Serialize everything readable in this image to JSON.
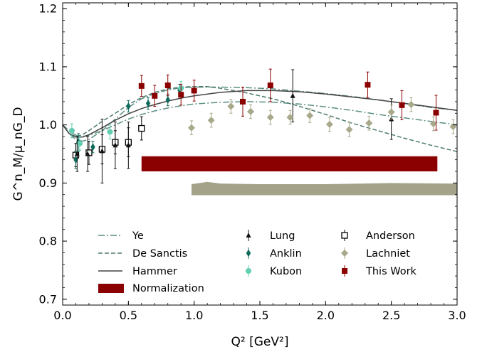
{
  "chart_data": {
    "type": "scatter",
    "xlabel": "Q² [GeV²]",
    "ylabel": "G^n_M/μ_nG_D",
    "xlim": [
      0.0,
      3.0
    ],
    "ylim": [
      0.69,
      1.21
    ],
    "xticks": [
      "0.0",
      "0.5",
      "1.0",
      "1.5",
      "2.0",
      "2.5",
      "3.0"
    ],
    "yticks": [
      "0.7",
      "0.8",
      "0.9",
      "1.0",
      "1.1",
      "1.2"
    ],
    "colors": {
      "ye": "#5b8f82",
      "desanctis": "#4d7a70",
      "hammer": "#444444",
      "lung": "#111111",
      "anklin": "#0f6b5c",
      "kubon": "#63cdb2",
      "anderson": "#000000",
      "lachniet": "#a8a88a",
      "thiswork": "#8b0000",
      "normalization": "#8b0000",
      "lachniet_band": "#a4a38a"
    },
    "legend": [
      {
        "key": "ye",
        "label": "Ye",
        "kind": "dashdot"
      },
      {
        "key": "desanctis",
        "label": "De Sanctis",
        "kind": "dashed"
      },
      {
        "key": "hammer",
        "label": "Hammer",
        "kind": "solid"
      },
      {
        "key": "normalization",
        "label": "Normalization",
        "kind": "band"
      },
      {
        "key": "lung",
        "label": "Lung",
        "kind": "triangle"
      },
      {
        "key": "anklin",
        "label": "Anklin",
        "kind": "thin-diamond"
      },
      {
        "key": "kubon",
        "label": "Kubon",
        "kind": "circle"
      },
      {
        "key": "anderson",
        "label": "Anderson",
        "kind": "open-square"
      },
      {
        "key": "lachniet",
        "label": "Lachniet",
        "kind": "diamond"
      },
      {
        "key": "thiswork",
        "label": "This Work",
        "kind": "square"
      }
    ],
    "curves": [
      {
        "key": "ye",
        "style": "dashdot",
        "points": [
          [
            0.0,
            1.0
          ],
          [
            0.05,
            0.99
          ],
          [
            0.1,
            0.982
          ],
          [
            0.15,
            0.98
          ],
          [
            0.2,
            0.982
          ],
          [
            0.3,
            0.99
          ],
          [
            0.4,
            1.0
          ],
          [
            0.5,
            1.01
          ],
          [
            0.6,
            1.018
          ],
          [
            0.7,
            1.024
          ],
          [
            0.8,
            1.029
          ],
          [
            0.9,
            1.033
          ],
          [
            1.0,
            1.036
          ],
          [
            1.2,
            1.039
          ],
          [
            1.4,
            1.04
          ],
          [
            1.6,
            1.039
          ],
          [
            1.8,
            1.036
          ],
          [
            2.0,
            1.031
          ],
          [
            2.2,
            1.025
          ],
          [
            2.4,
            1.018
          ],
          [
            2.6,
            1.012
          ],
          [
            2.8,
            1.006
          ],
          [
            3.0,
            1.0
          ]
        ]
      },
      {
        "key": "ye",
        "style": "dashdot",
        "points": [
          [
            0.0,
            1.0
          ],
          [
            0.05,
            0.985
          ],
          [
            0.1,
            0.975
          ],
          [
            0.15,
            0.972
          ],
          [
            0.2,
            0.975
          ],
          [
            0.3,
            0.99
          ],
          [
            0.4,
            1.01
          ],
          [
            0.5,
            1.03
          ],
          [
            0.6,
            1.045
          ],
          [
            0.7,
            1.054
          ],
          [
            0.8,
            1.06
          ],
          [
            0.9,
            1.064
          ],
          [
            1.0,
            1.065
          ],
          [
            1.2,
            1.065
          ],
          [
            1.4,
            1.064
          ],
          [
            1.6,
            1.062
          ],
          [
            1.8,
            1.058
          ],
          [
            2.0,
            1.054
          ],
          [
            2.2,
            1.049
          ],
          [
            2.4,
            1.043
          ],
          [
            2.6,
            1.037
          ],
          [
            2.8,
            1.03
          ],
          [
            3.0,
            1.025
          ]
        ]
      },
      {
        "key": "desanctis",
        "style": "dashed",
        "points": [
          [
            0.0,
            1.0
          ],
          [
            0.05,
            0.985
          ],
          [
            0.1,
            0.98
          ],
          [
            0.15,
            0.983
          ],
          [
            0.2,
            0.99
          ],
          [
            0.3,
            1.006
          ],
          [
            0.4,
            1.02
          ],
          [
            0.5,
            1.035
          ],
          [
            0.6,
            1.047
          ],
          [
            0.7,
            1.056
          ],
          [
            0.8,
            1.062
          ],
          [
            0.9,
            1.065
          ],
          [
            1.0,
            1.066
          ],
          [
            1.1,
            1.066
          ],
          [
            1.2,
            1.063
          ],
          [
            1.4,
            1.055
          ],
          [
            1.6,
            1.045
          ],
          [
            1.8,
            1.032
          ],
          [
            2.0,
            1.018
          ],
          [
            2.2,
            1.003
          ],
          [
            2.4,
            0.99
          ],
          [
            2.6,
            0.977
          ],
          [
            2.8,
            0.965
          ],
          [
            3.0,
            0.954
          ]
        ]
      },
      {
        "key": "hammer",
        "style": "solid",
        "points": [
          [
            0.0,
            1.0
          ],
          [
            0.05,
            0.985
          ],
          [
            0.1,
            0.979
          ],
          [
            0.15,
            0.979
          ],
          [
            0.2,
            0.983
          ],
          [
            0.3,
            0.995
          ],
          [
            0.4,
            1.008
          ],
          [
            0.5,
            1.019
          ],
          [
            0.6,
            1.028
          ],
          [
            0.7,
            1.035
          ],
          [
            0.8,
            1.041
          ],
          [
            0.9,
            1.046
          ],
          [
            1.0,
            1.05
          ],
          [
            1.2,
            1.056
          ],
          [
            1.4,
            1.059
          ],
          [
            1.6,
            1.059
          ],
          [
            1.8,
            1.057
          ],
          [
            2.0,
            1.053
          ],
          [
            2.2,
            1.048
          ],
          [
            2.4,
            1.043
          ],
          [
            2.6,
            1.037
          ],
          [
            2.8,
            1.031
          ],
          [
            3.0,
            1.025
          ]
        ]
      }
    ],
    "bands": [
      {
        "key": "normalization",
        "points_top": [
          [
            0.6,
            0.946
          ],
          [
            2.85,
            0.946
          ]
        ],
        "points_bottom": [
          [
            0.6,
            0.92
          ],
          [
            2.85,
            0.92
          ]
        ]
      },
      {
        "key": "lachniet_band",
        "points_top": [
          [
            0.98,
            0.898
          ],
          [
            1.1,
            0.902
          ],
          [
            1.2,
            0.899
          ],
          [
            1.5,
            0.898
          ],
          [
            2.0,
            0.898
          ],
          [
            2.5,
            0.9
          ],
          [
            3.0,
            0.899
          ]
        ],
        "points_bottom": [
          [
            0.98,
            0.879
          ],
          [
            3.0,
            0.879
          ]
        ]
      }
    ],
    "series": [
      {
        "key": "anderson",
        "name": "Anderson",
        "marker": "open-square",
        "x": [
          0.1,
          0.2,
          0.3,
          0.4,
          0.5,
          0.6
        ],
        "y": [
          0.948,
          0.952,
          0.958,
          0.97,
          0.97,
          0.994
        ],
        "err": [
          0.02,
          0.02,
          0.025,
          0.02,
          0.025,
          0.02
        ]
      },
      {
        "key": "anklin",
        "name": "Anklin",
        "marker": "thin-diamond",
        "x": [
          0.1,
          0.12,
          0.23,
          0.5,
          0.65,
          0.8,
          0.89
        ],
        "y": [
          0.94,
          0.97,
          0.962,
          1.032,
          1.037,
          1.043,
          1.06
        ],
        "err": [
          0.015,
          0.015,
          0.01,
          0.01,
          0.01,
          0.01,
          0.01
        ]
      },
      {
        "key": "kubon",
        "name": "Kubon",
        "marker": "circle",
        "x": [
          0.07,
          0.13,
          0.36,
          0.9
        ],
        "y": [
          0.99,
          0.968,
          0.988,
          1.063
        ],
        "err": [
          0.012,
          0.012,
          0.012,
          0.012
        ]
      },
      {
        "key": "lung",
        "name": "Lung",
        "marker": "triangle",
        "x": [
          0.11,
          0.19,
          0.3,
          0.4,
          0.5,
          1.75,
          2.5
        ],
        "y": [
          0.95,
          0.95,
          0.955,
          0.965,
          0.965,
          1.05,
          1.01
        ],
        "err": [
          0.03,
          0.03,
          0.055,
          0.04,
          0.04,
          0.045,
          0.035
        ]
      },
      {
        "key": "lachniet",
        "name": "Lachniet",
        "marker": "diamond",
        "x": [
          0.98,
          1.13,
          1.28,
          1.43,
          1.58,
          1.73,
          1.88,
          2.03,
          2.18,
          2.33,
          2.5,
          2.65,
          2.82,
          2.97
        ],
        "y": [
          0.995,
          1.008,
          1.032,
          1.023,
          1.013,
          1.013,
          1.016,
          1.001,
          0.992,
          1.003,
          1.022,
          1.035,
          1.002,
          0.997
        ],
        "err": [
          0.012,
          0.012,
          0.012,
          0.012,
          0.012,
          0.012,
          0.012,
          0.012,
          0.012,
          0.012,
          0.012,
          0.012,
          0.012,
          0.012
        ]
      },
      {
        "key": "thiswork",
        "name": "This Work",
        "marker": "square",
        "x": [
          0.6,
          0.7,
          0.8,
          0.9,
          1.0,
          1.37,
          1.58,
          2.32,
          2.58,
          2.84
        ],
        "y": [
          1.067,
          1.05,
          1.068,
          1.052,
          1.059,
          1.04,
          1.068,
          1.069,
          1.034,
          1.021
        ],
        "err": [
          0.018,
          0.018,
          0.018,
          0.018,
          0.018,
          0.025,
          0.028,
          0.022,
          0.025,
          0.03
        ]
      }
    ]
  }
}
